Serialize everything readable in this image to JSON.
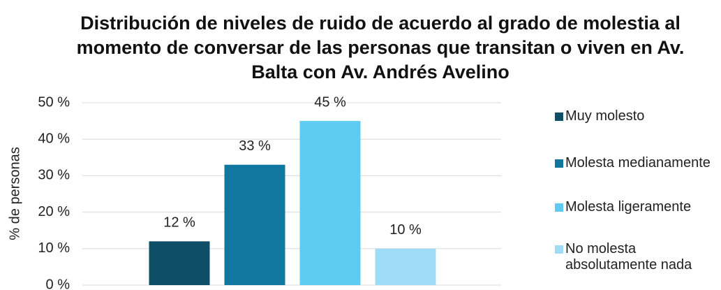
{
  "chart_data": {
    "type": "bar",
    "title": "Distribución de niveles de ruido de acuerdo al grado de molestia al momento de conversar de las personas que transitan o viven en Av. Balta con Av. Andrés Avelino",
    "ylabel": "% de personas",
    "series": [
      {
        "name": "Muy molesto",
        "color": "#0e4e66",
        "values": [
          12
        ],
        "value_labels": [
          "12 %"
        ]
      },
      {
        "name": "Molesta medianamente",
        "color": "#1177a1",
        "values": [
          33
        ],
        "value_labels": [
          "33 %"
        ]
      },
      {
        "name": "Molesta ligeramente",
        "color": "#5ecbf2",
        "values": [
          45
        ],
        "value_labels": [
          "45 %"
        ]
      },
      {
        "name": "No molesta absolutamente nada",
        "color": "#9edcf7",
        "values": [
          10
        ],
        "value_labels": [
          "10 %"
        ]
      }
    ],
    "ylim": [
      0,
      50
    ],
    "yticks": [
      {
        "value": 0,
        "label": "0 %"
      },
      {
        "value": 10,
        "label": "10 %"
      },
      {
        "value": 20,
        "label": "20 %"
      },
      {
        "value": 30,
        "label": "30 %"
      },
      {
        "value": 40,
        "label": "40 %"
      },
      {
        "value": 50,
        "label": "50 %"
      }
    ],
    "grid": true,
    "legend": "right"
  }
}
